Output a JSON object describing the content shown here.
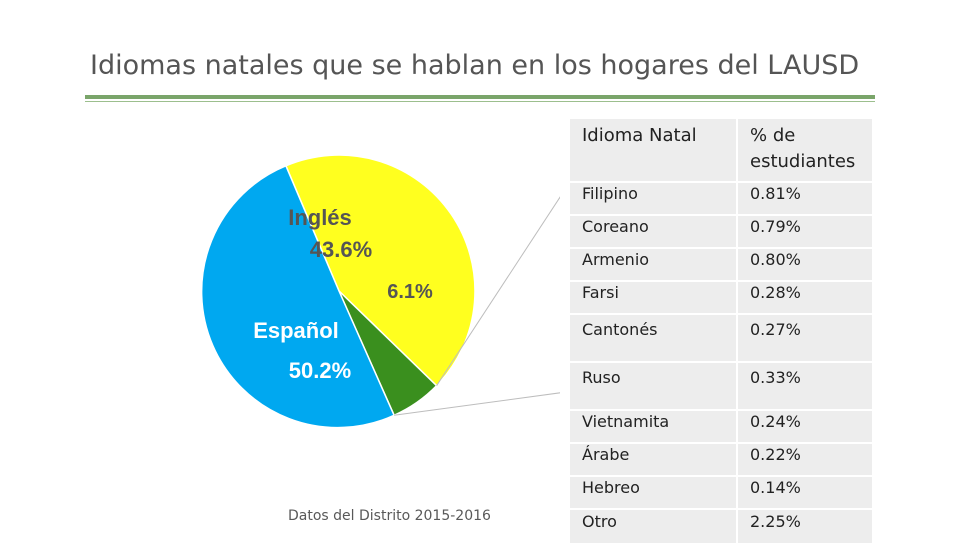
{
  "title": "Idiomas natales que se hablan en los hogares del LAUSD",
  "source_note": "Datos del Distrito 2015-2016",
  "chart_data": {
    "type": "pie",
    "slices": [
      {
        "label": "Inglés",
        "value": 43.6,
        "value_label": "43.6%",
        "color": "#ffff1f"
      },
      {
        "label": "",
        "value": 6.1,
        "value_label": "6.1%",
        "color": "#3a8f1e"
      },
      {
        "label": "Español",
        "value": 50.2,
        "value_label": "50.2%",
        "color": "#00a8f0"
      }
    ],
    "breakdown_of": "6.1%",
    "table": {
      "headers": [
        "Idioma Natal",
        "% de estudiantes"
      ],
      "rows": [
        [
          "Filipino",
          "0.81%"
        ],
        [
          "Coreano",
          "0.79%"
        ],
        [
          "Armenio",
          "0.80%"
        ],
        [
          "Farsi",
          "0.28%"
        ],
        [
          "Cantonés",
          "0.27%"
        ],
        [
          "Ruso",
          "0.33%"
        ],
        [
          "Vietnamita",
          "0.24%"
        ],
        [
          "Árabe",
          "0.22%"
        ],
        [
          "Hebreo",
          "0.14%"
        ],
        [
          "Otro",
          "2.25%"
        ]
      ]
    }
  }
}
